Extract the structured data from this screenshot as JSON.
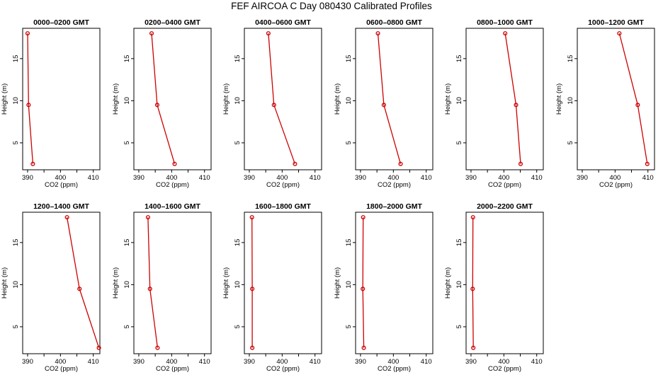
{
  "title": "FEF AIRCOA C  Day 080430  Calibrated Profiles",
  "colors": {
    "profile": "#cc0000",
    "axes": "#000000",
    "background": "#ffffff"
  },
  "chart_data": {
    "type": "line",
    "xlabel": "CO2 (ppm)",
    "ylabel": "Height (m)",
    "xlim": [
      388.5,
      412
    ],
    "ylim": [
      1.8,
      18.6
    ],
    "x_ticks": [
      390,
      395,
      400,
      405,
      410
    ],
    "x_tick_labels": [
      "390",
      "",
      "400",
      "",
      "410"
    ],
    "y_ticks": [
      5,
      10,
      15
    ],
    "y_tick_labels": [
      "5",
      "10",
      "15"
    ],
    "heights": [
      18,
      9.5,
      2.5
    ],
    "panels": [
      {
        "title": "0000–0200 GMT",
        "values": [
          390.0,
          390.3,
          391.6
        ]
      },
      {
        "title": "0200–0400 GMT",
        "values": [
          393.9,
          395.6,
          400.9
        ]
      },
      {
        "title": "0400–0600 GMT",
        "values": [
          395.8,
          397.5,
          403.9
        ]
      },
      {
        "title": "0600–0800 GMT",
        "values": [
          395.3,
          397.1,
          402.2
        ]
      },
      {
        "title": "0800–1000 GMT",
        "values": [
          400.4,
          403.7,
          405.1
        ]
      },
      {
        "title": "1000–1200 GMT",
        "values": [
          401.3,
          406.9,
          409.8
        ]
      },
      {
        "title": "1200–1400 GMT",
        "values": [
          402.0,
          405.8,
          411.7
        ]
      },
      {
        "title": "1400–1600 GMT",
        "values": [
          392.8,
          393.4,
          395.7
        ]
      },
      {
        "title": "1600–1800 GMT",
        "values": [
          390.8,
          390.9,
          390.9
        ]
      },
      {
        "title": "1800–2000 GMT",
        "values": [
          390.8,
          390.7,
          391.0
        ]
      },
      {
        "title": "2000–2200 GMT",
        "values": [
          390.6,
          390.5,
          390.7
        ]
      }
    ]
  }
}
